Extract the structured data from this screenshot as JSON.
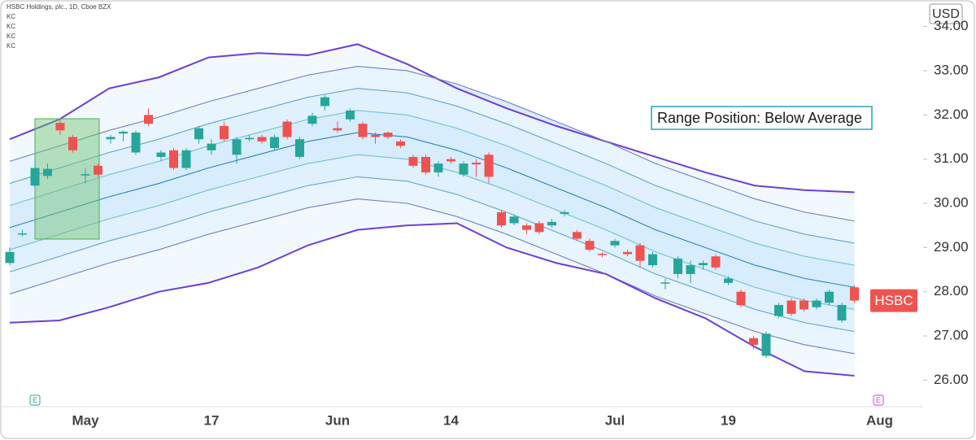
{
  "chart_data": [
    {
      "type": "candlestick",
      "title": "HSBC Holdings, plc., 1D, Cboe BZX",
      "indicators": [
        "KC",
        "KC",
        "KC",
        "KC"
      ],
      "y_axis_unit": "USD",
      "annotation": "Range Position: Below Average",
      "price_tag": "HSBC",
      "event_markers": [
        "E",
        "E"
      ],
      "up_color": "#26a69a",
      "down_color": "#ef5350",
      "ylim": [
        25.4,
        34.6
      ],
      "yticks": [
        {
          "value": 26,
          "label": "26.00"
        },
        {
          "value": 27,
          "label": "27.00"
        },
        {
          "value": 28,
          "label": "28.00"
        },
        {
          "value": 29,
          "label": "29.00"
        },
        {
          "value": 30,
          "label": "30.00"
        },
        {
          "value": 31,
          "label": "31.00"
        },
        {
          "value": 32,
          "label": "32.00"
        },
        {
          "value": 33,
          "label": "33.00"
        },
        {
          "value": 34,
          "label": "34.00"
        }
      ],
      "categories": [
        null,
        null,
        null,
        null,
        null,
        null,
        "May",
        null,
        null,
        null,
        null,
        null,
        null,
        null,
        null,
        null,
        "17",
        null,
        null,
        null,
        null,
        null,
        null,
        null,
        null,
        null,
        "Jun",
        null,
        null,
        null,
        null,
        null,
        null,
        null,
        null,
        "14",
        null,
        null,
        null,
        null,
        null,
        null,
        null,
        null,
        null,
        null,
        null,
        null,
        "Jul",
        null,
        null,
        null,
        null,
        null,
        null,
        null,
        null,
        "19",
        null,
        null,
        null,
        null,
        null,
        null,
        null,
        null,
        null,
        null,
        null,
        "Aug"
      ],
      "open": [
        28.65,
        29.3,
        30.4,
        30.62,
        31.82,
        31.5,
        30.63,
        30.85,
        31.45,
        31.58,
        31.15,
        32.0,
        31.05,
        31.2,
        30.8,
        31.45,
        31.2,
        31.75,
        31.1,
        31.45,
        31.5,
        31.25,
        31.85,
        31.05,
        31.8,
        32.2,
        31.7,
        31.9,
        31.8,
        31.55,
        31.6,
        31.4,
        31.05,
        31.05,
        30.7,
        31.0,
        30.65,
        30.92,
        31.1,
        29.8,
        29.55,
        29.5,
        29.55,
        29.5,
        29.76,
        29.35,
        29.15,
        28.86,
        29.05,
        28.9,
        29.05,
        28.6,
        28.19,
        28.4,
        28.4,
        28.6,
        28.8,
        28.2,
        28.0,
        26.95,
        26.55,
        27.45,
        27.8,
        27.8,
        27.65,
        27.75,
        27.35,
        28.1,
        null,
        null
      ],
      "high": [
        29.0,
        29.4,
        31.0,
        30.9,
        31.9,
        31.55,
        30.8,
        30.9,
        31.55,
        31.65,
        31.65,
        32.15,
        31.2,
        31.25,
        31.25,
        31.75,
        31.45,
        31.85,
        31.5,
        31.55,
        31.55,
        31.55,
        31.9,
        31.5,
        32.05,
        32.45,
        31.85,
        32.15,
        31.85,
        31.6,
        31.62,
        31.45,
        31.1,
        31.1,
        30.95,
        31.05,
        30.95,
        31.0,
        31.15,
        29.85,
        29.75,
        29.55,
        29.6,
        29.65,
        29.85,
        29.4,
        29.2,
        28.9,
        29.2,
        28.95,
        29.1,
        28.9,
        28.3,
        28.8,
        28.7,
        28.7,
        28.85,
        28.35,
        28.05,
        27.0,
        27.1,
        27.75,
        27.85,
        27.85,
        27.85,
        28.05,
        27.75,
        28.15,
        null,
        null
      ],
      "low": [
        28.6,
        29.25,
        30.3,
        30.55,
        31.55,
        31.15,
        30.45,
        30.6,
        31.35,
        31.4,
        31.1,
        31.75,
        30.95,
        30.75,
        30.75,
        31.35,
        31.1,
        31.4,
        30.9,
        31.4,
        31.35,
        31.2,
        31.45,
        31.0,
        31.75,
        32.1,
        31.6,
        31.85,
        31.45,
        31.35,
        31.45,
        31.25,
        30.8,
        30.65,
        30.6,
        30.9,
        30.6,
        30.6,
        30.45,
        29.45,
        29.5,
        29.3,
        29.3,
        29.45,
        29.7,
        29.15,
        28.9,
        28.78,
        29.0,
        28.8,
        28.55,
        28.55,
        28.05,
        28.3,
        28.2,
        28.5,
        28.5,
        28.15,
        27.65,
        26.7,
        26.5,
        27.4,
        27.45,
        27.55,
        27.6,
        27.7,
        27.3,
        27.75,
        null,
        null
      ],
      "close": [
        28.9,
        29.32,
        30.8,
        30.78,
        31.65,
        31.2,
        30.66,
        30.65,
        31.5,
        31.62,
        31.6,
        31.8,
        31.15,
        30.8,
        31.2,
        31.7,
        31.35,
        31.45,
        31.45,
        31.48,
        31.4,
        31.5,
        31.5,
        31.45,
        31.98,
        32.4,
        31.65,
        32.1,
        31.5,
        31.5,
        31.5,
        31.3,
        30.85,
        30.7,
        30.9,
        30.95,
        30.9,
        30.88,
        30.6,
        29.5,
        29.7,
        29.4,
        29.35,
        29.58,
        29.8,
        29.2,
        28.95,
        28.84,
        29.15,
        28.85,
        28.7,
        28.85,
        28.21,
        28.75,
        28.6,
        28.65,
        28.55,
        28.3,
        27.7,
        26.8,
        27.05,
        27.7,
        27.5,
        27.6,
        27.8,
        28.0,
        27.7,
        27.8,
        null,
        null
      ]
    },
    {
      "type": "line",
      "fill": "#2196f3",
      "categories": [
        null,
        null,
        null,
        null,
        null,
        null,
        null,
        null,
        null,
        null,
        null,
        null,
        null,
        null,
        null,
        null,
        null,
        null
      ],
      "series": [
        {
          "color": "#6c3fd8",
          "values": [
            31.45,
            31.9,
            32.6,
            32.85,
            33.3,
            33.4,
            33.35,
            33.6,
            33.15,
            32.6,
            32.15,
            31.75,
            31.4,
            31.05,
            30.7,
            30.4,
            30.3,
            30.25
          ]
        },
        {
          "color": "#6f7fc4",
          "values": [
            30.95,
            31.3,
            31.65,
            31.95,
            32.3,
            32.6,
            32.9,
            33.1,
            33.0,
            32.7,
            32.3,
            31.85,
            31.4,
            30.9,
            30.5,
            30.1,
            29.8,
            29.6
          ]
        },
        {
          "color": "#5ea7c9",
          "values": [
            30.45,
            30.8,
            31.15,
            31.45,
            31.8,
            32.1,
            32.4,
            32.6,
            32.5,
            32.2,
            31.8,
            31.35,
            30.9,
            30.4,
            30.0,
            29.6,
            29.3,
            29.1
          ]
        },
        {
          "color": "#6fc0d8",
          "values": [
            29.95,
            30.3,
            30.65,
            30.95,
            31.3,
            31.6,
            31.9,
            32.1,
            32.0,
            31.7,
            31.3,
            30.85,
            30.4,
            29.9,
            29.5,
            29.1,
            28.8,
            28.6
          ]
        },
        {
          "color": "#2a84c0",
          "values": [
            29.45,
            29.8,
            30.15,
            30.45,
            30.8,
            31.1,
            31.4,
            31.6,
            31.5,
            31.2,
            30.8,
            30.35,
            29.9,
            29.4,
            29.0,
            28.6,
            28.3,
            28.1
          ]
        },
        {
          "color": "#6fc0d8",
          "values": [
            28.95,
            29.3,
            29.65,
            29.95,
            30.3,
            30.6,
            30.9,
            31.1,
            31.0,
            30.7,
            30.3,
            29.85,
            29.4,
            28.9,
            28.5,
            28.1,
            27.8,
            27.6
          ]
        },
        {
          "color": "#5ea7c9",
          "values": [
            28.45,
            28.8,
            29.15,
            29.45,
            29.8,
            30.1,
            30.4,
            30.6,
            30.5,
            30.2,
            29.8,
            29.35,
            28.9,
            28.4,
            28.0,
            27.6,
            27.3,
            27.1
          ]
        },
        {
          "color": "#6f7fc4",
          "values": [
            27.95,
            28.3,
            28.65,
            28.95,
            29.3,
            29.6,
            29.9,
            30.1,
            30.0,
            29.7,
            29.3,
            28.85,
            28.4,
            27.9,
            27.5,
            27.1,
            26.8,
            26.6
          ]
        },
        {
          "color": "#6c3fd8",
          "values": [
            27.3,
            27.35,
            27.65,
            28.0,
            28.2,
            28.55,
            29.05,
            29.4,
            29.5,
            29.55,
            29.0,
            28.65,
            28.4,
            27.85,
            27.4,
            26.75,
            26.2,
            26.1
          ]
        }
      ]
    }
  ]
}
